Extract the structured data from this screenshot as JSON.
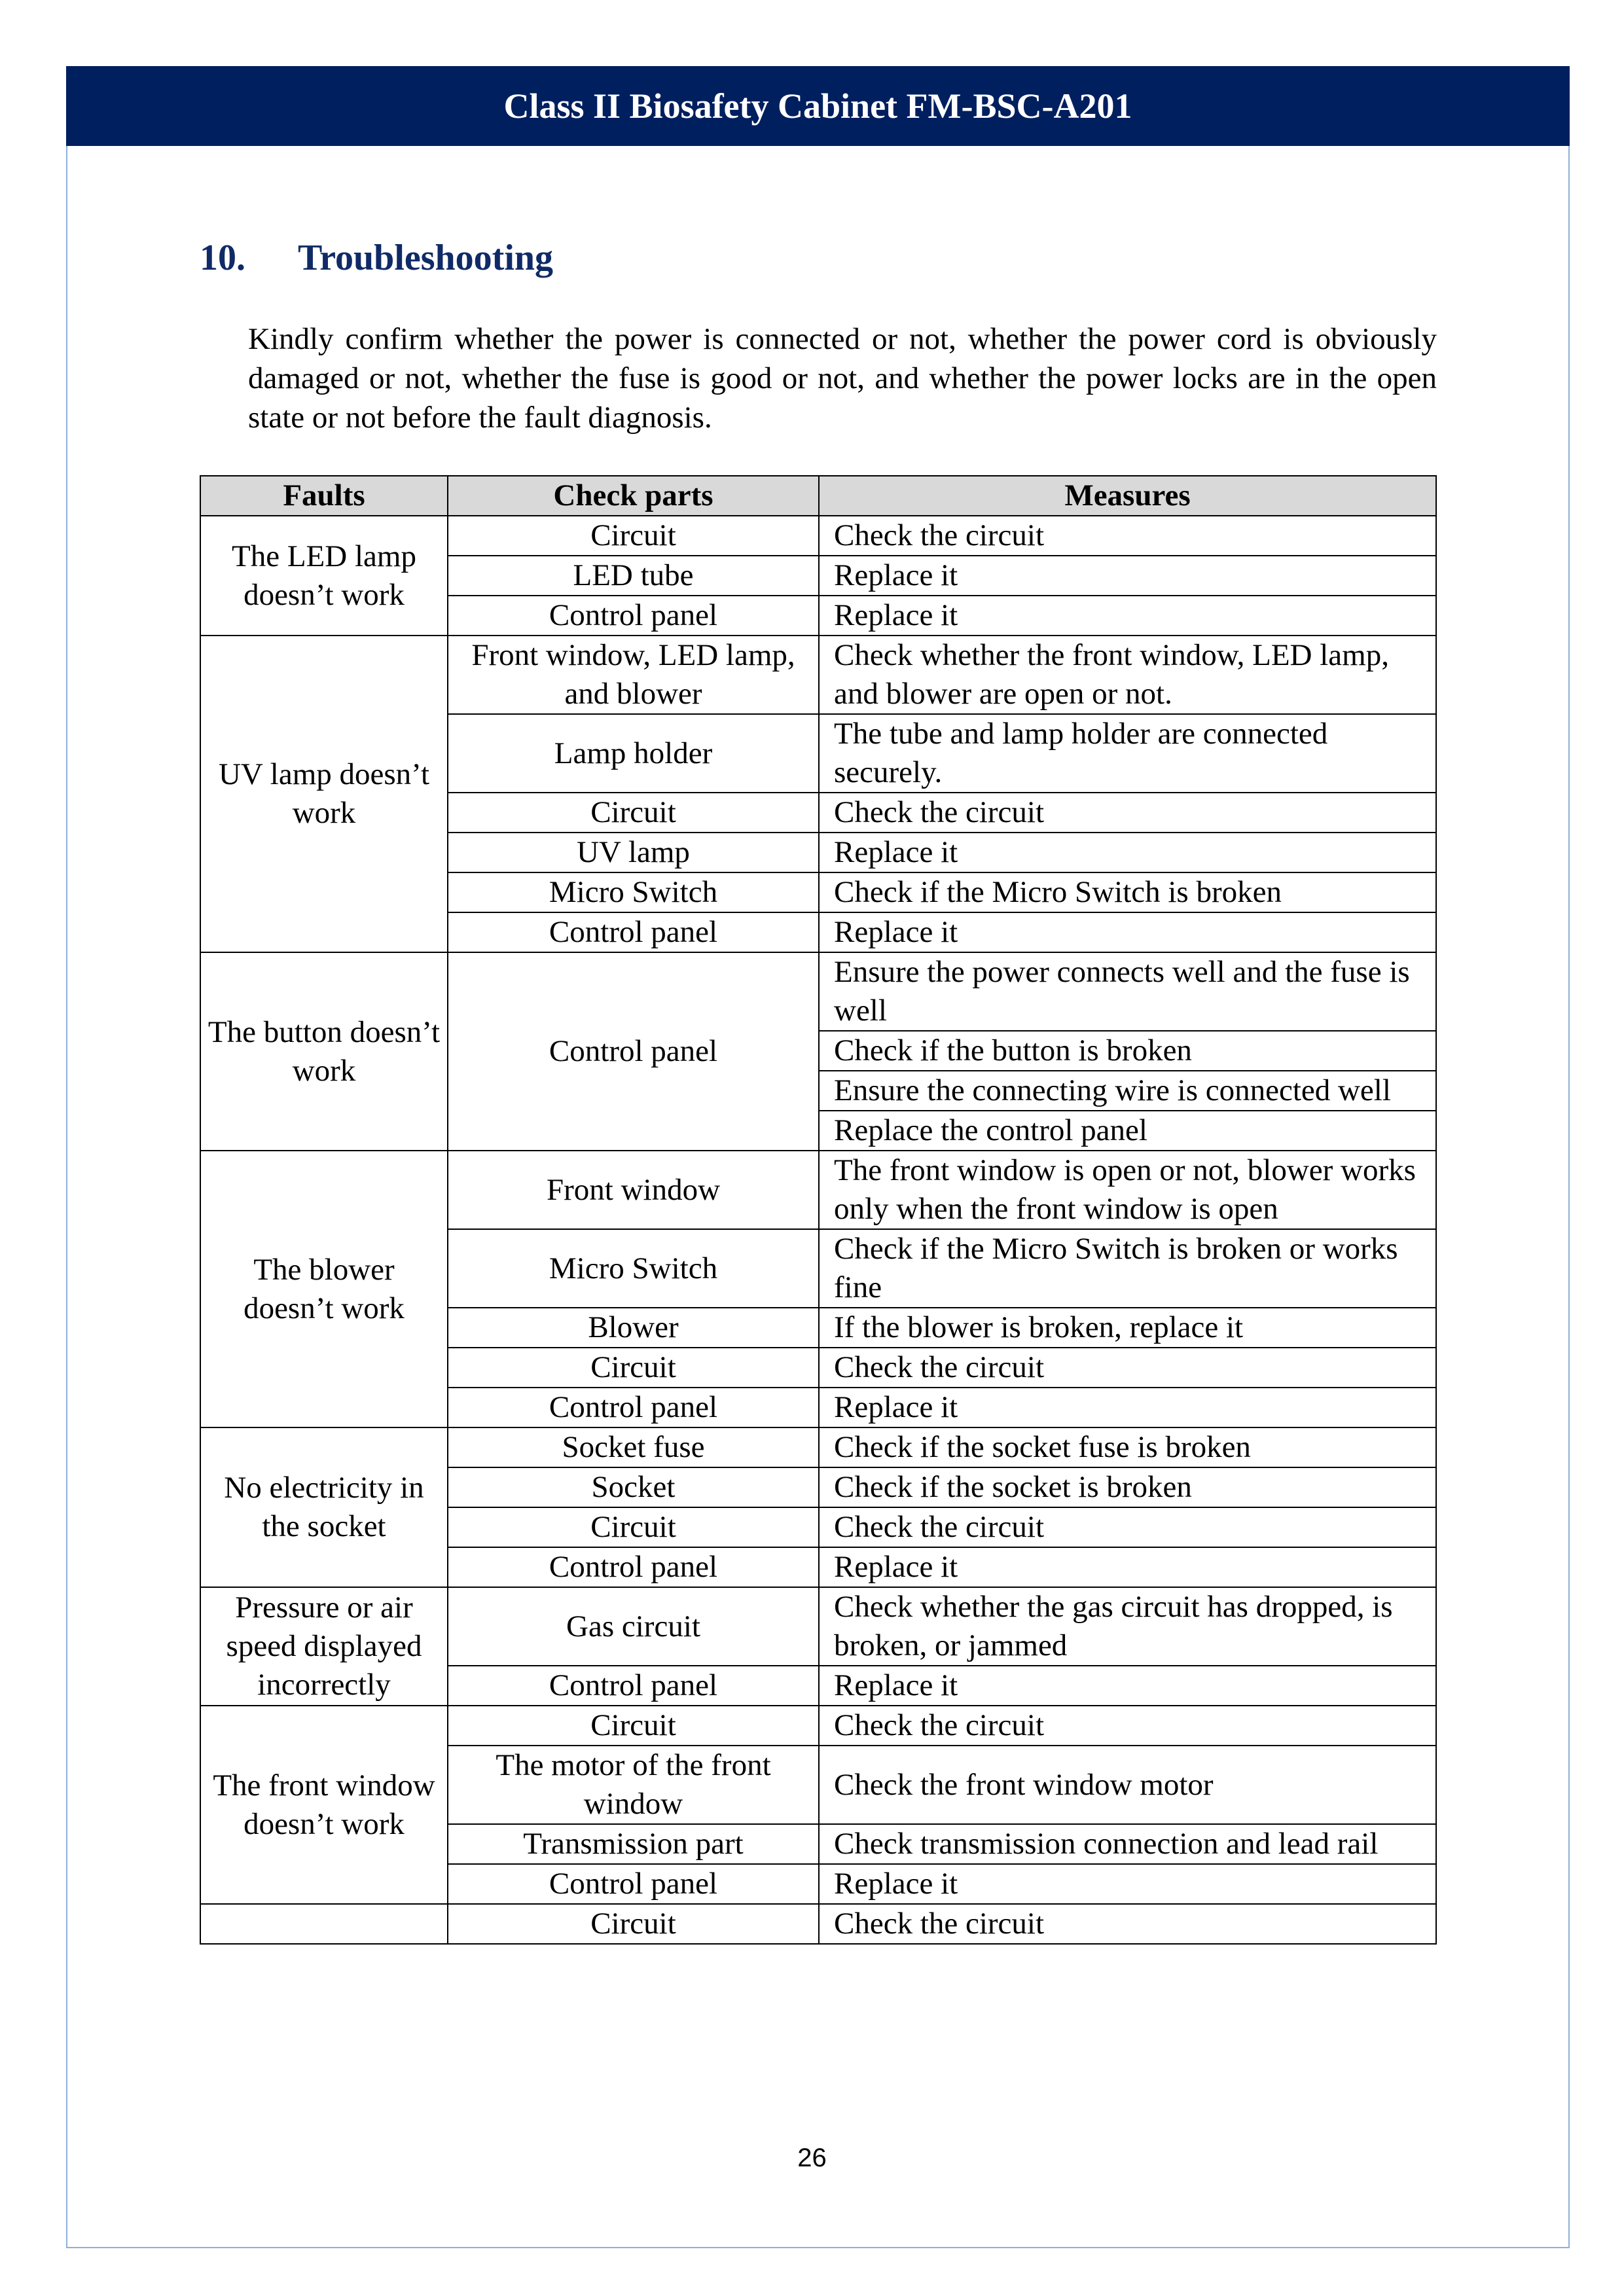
{
  "header": {
    "title": "Class II Biosafety Cabinet FM-BSC-A201"
  },
  "section": {
    "number": "10.",
    "title": "Troubleshooting"
  },
  "intro": "Kindly confirm whether the power is connected or not, whether the power cord is obviously damaged or not, whether the fuse is good or not, and whether the power locks are in the open state or not before the fault diagnosis.",
  "table": {
    "headers": [
      "Faults",
      "Check parts",
      "Measures"
    ],
    "groups": [
      {
        "fault": "The LED lamp doesn’t work",
        "parts": [
          {
            "part": "Circuit",
            "measures": [
              "Check the circuit"
            ]
          },
          {
            "part": "LED tube",
            "measures": [
              "Replace it"
            ]
          },
          {
            "part": "Control panel",
            "measures": [
              "Replace it"
            ]
          }
        ]
      },
      {
        "fault": "UV lamp doesn’t work",
        "parts": [
          {
            "part": "Front window, LED lamp, and blower",
            "measures": [
              "Check whether the front window, LED lamp, and blower are open or not."
            ]
          },
          {
            "part": "Lamp holder",
            "measures": [
              "The tube and lamp holder are connected securely."
            ]
          },
          {
            "part": "Circuit",
            "measures": [
              "Check the circuit"
            ]
          },
          {
            "part": "UV lamp",
            "measures": [
              "Replace it"
            ]
          },
          {
            "part": "Micro Switch",
            "measures": [
              "Check if the Micro Switch is broken"
            ]
          },
          {
            "part": "Control panel",
            "measures": [
              "Replace it"
            ]
          }
        ]
      },
      {
        "fault": "The button doesn’t work",
        "parts": [
          {
            "part": "Control panel",
            "measures": [
              "Ensure the power connects well and the fuse is well",
              "Check if the button is broken",
              "Ensure the connecting wire is connected well",
              "Replace the control panel"
            ]
          }
        ]
      },
      {
        "fault": "The blower doesn’t work",
        "parts": [
          {
            "part": "Front window",
            "measures": [
              "The front window is open or not, blower works only when the front window is open"
            ]
          },
          {
            "part": "Micro Switch",
            "measures": [
              "Check if the Micro Switch is broken or works fine"
            ]
          },
          {
            "part": "Blower",
            "measures": [
              "If the blower is broken, replace it"
            ]
          },
          {
            "part": "Circuit",
            "measures": [
              "Check the circuit"
            ]
          },
          {
            "part": "Control panel",
            "measures": [
              "Replace it"
            ]
          }
        ]
      },
      {
        "fault": "No electricity in the socket",
        "parts": [
          {
            "part": "Socket fuse",
            "measures": [
              "Check if the socket fuse is broken"
            ]
          },
          {
            "part": "Socket",
            "measures": [
              "Check if the socket is broken"
            ]
          },
          {
            "part": "Circuit",
            "measures": [
              "Check the circuit"
            ]
          },
          {
            "part": "Control panel",
            "measures": [
              "Replace it"
            ]
          }
        ]
      },
      {
        "fault": "Pressure or air speed displayed incorrectly",
        "parts": [
          {
            "part": "Gas circuit",
            "measures": [
              "Check whether the gas circuit has dropped, is broken, or jammed"
            ]
          },
          {
            "part": "Control panel",
            "measures": [
              "Replace it"
            ]
          }
        ]
      },
      {
        "fault": "The front window doesn’t work",
        "parts": [
          {
            "part": "Circuit",
            "measures": [
              "Check the circuit"
            ]
          },
          {
            "part": "The motor of the front window",
            "measures": [
              "Check the front window motor"
            ]
          },
          {
            "part": "Transmission part",
            "measures": [
              "Check transmission connection and lead rail"
            ]
          },
          {
            "part": "Control panel",
            "measures": [
              "Replace it"
            ]
          }
        ]
      },
      {
        "fault": "",
        "parts": [
          {
            "part": "Circuit",
            "measures": [
              "Check the circuit"
            ]
          }
        ]
      }
    ]
  },
  "footer": {
    "page_number": "26"
  }
}
